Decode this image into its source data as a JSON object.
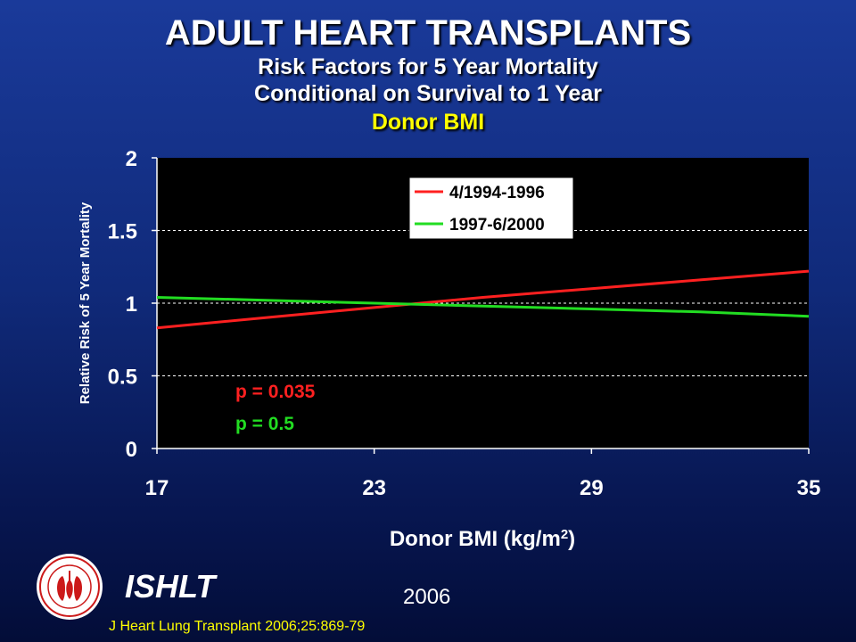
{
  "header": {
    "title": "ADULT HEART TRANSPLANTS",
    "subtitle_line1": "Risk Factors for 5 Year Mortality",
    "subtitle_line2": "Conditional on Survival to 1 Year",
    "subtitle_line3": "Donor BMI"
  },
  "footer": {
    "org": "ISHLT",
    "year": "2006",
    "citation": "J Heart Lung Transplant 2006;25:869-79"
  },
  "colors": {
    "background": "#102a7a",
    "plot_area": "#000000",
    "series_red": "#ff2020",
    "series_green": "#22dd22",
    "accent_yellow": "#ffff00"
  },
  "chart_data": {
    "type": "line",
    "xlabel": "Donor BMI (kg/m²)",
    "ylabel": "Relative Risk of 5 Year Mortality",
    "xlim": [
      17,
      35
    ],
    "ylim": [
      0,
      2
    ],
    "xticks": [
      "17",
      "23",
      "29",
      "35"
    ],
    "yticks": [
      "0",
      "0.5",
      "1",
      "1.5",
      "2"
    ],
    "grid": "horizontal dashed",
    "legend_position": "top-center",
    "series": [
      {
        "name": "4/1994-1996",
        "color": "#ff2020",
        "x": [
          17,
          20,
          23,
          26,
          29,
          32,
          35
        ],
        "y": [
          0.83,
          0.9,
          0.97,
          1.04,
          1.1,
          1.16,
          1.22
        ]
      },
      {
        "name": "1997-6/2000",
        "color": "#22dd22",
        "x": [
          17,
          20,
          23,
          26,
          29,
          32,
          35
        ],
        "y": [
          1.04,
          1.02,
          1.0,
          0.98,
          0.96,
          0.94,
          0.91
        ]
      }
    ],
    "annotations": [
      {
        "text": "p = 0.035",
        "color": "#ff2020"
      },
      {
        "text": "p = 0.5",
        "color": "#22dd22"
      }
    ]
  }
}
